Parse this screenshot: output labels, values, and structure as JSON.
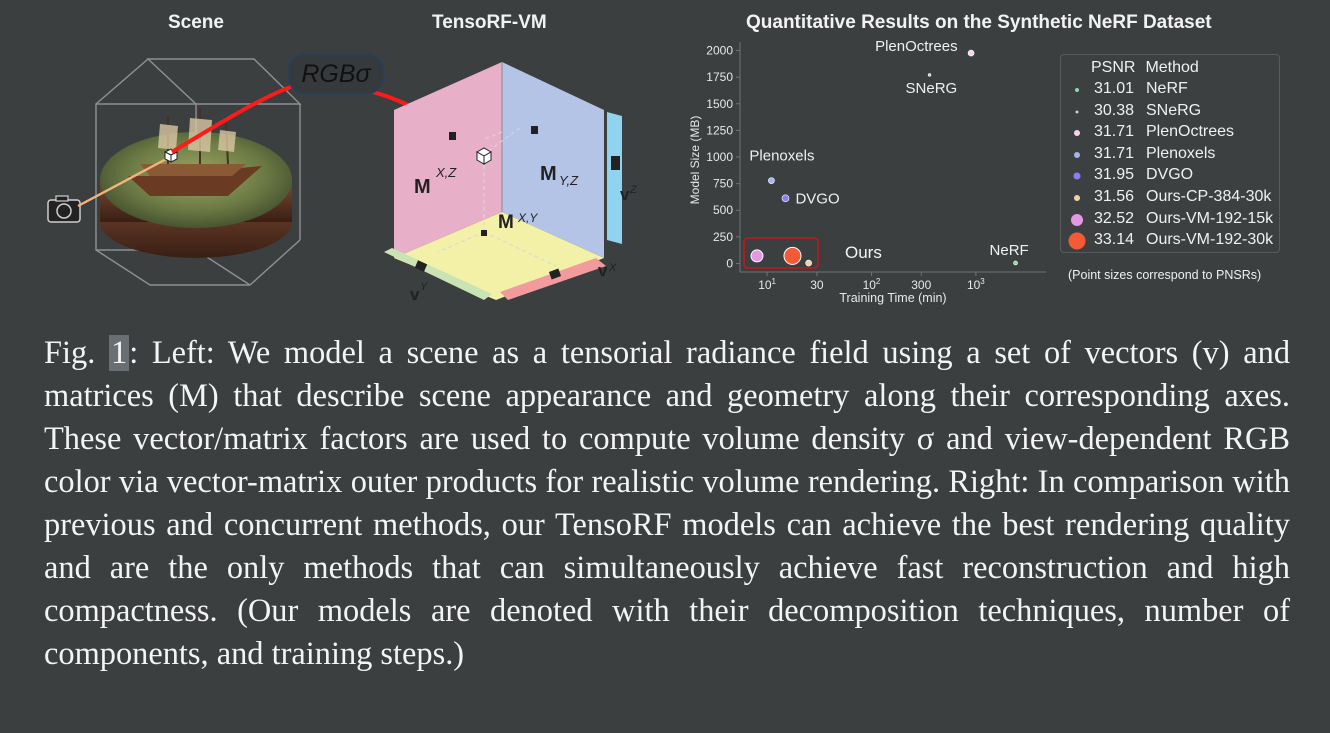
{
  "titles": {
    "scene": "Scene",
    "vm": "TensoRF-VM",
    "chart": "Quantitative Results on the Synthetic NeRF Dataset"
  },
  "diagram": {
    "rgb_sigma": "RGBσ",
    "m_xz": "M",
    "m_xz_sup": "X,Z",
    "m_yz": "M",
    "m_yz_sup": "Y,Z",
    "m_xy": "M",
    "m_xy_sup": "X,Y",
    "v_z": "v",
    "v_z_sup": "Z",
    "v_y": "v",
    "v_y_sup": "Y",
    "v_x": "v",
    "v_x_sup": "X",
    "colors": {
      "plane_xz": "#e8afc9",
      "plane_yz": "#b3c4e6",
      "plane_xy": "#f3f0a8",
      "vec_z": "#8fd3f1",
      "vec_y": "#c9e3b4",
      "vec_x": "#f39a9c",
      "ray": "#ff1a1a"
    }
  },
  "chart_data": {
    "type": "scatter",
    "title": "Quantitative Results on the Synthetic NeRF Dataset",
    "xlabel": "Training Time (min)",
    "ylabel": "Model Size (MB)",
    "x_scale": "log",
    "x_ticks": [
      {
        "value": 10,
        "label": "10",
        "sup": "1"
      },
      {
        "value": 30,
        "label": "30",
        "sup": ""
      },
      {
        "value": 100,
        "label": "10",
        "sup": "2"
      },
      {
        "value": 300,
        "label": "300",
        "sup": ""
      },
      {
        "value": 1000,
        "label": "10",
        "sup": "3"
      }
    ],
    "xlim": [
      5.5,
      4700
    ],
    "y_ticks": [
      0,
      250,
      500,
      750,
      1000,
      1250,
      1500,
      1750,
      2000
    ],
    "ylim": [
      -80,
      2080
    ],
    "legend_header": [
      "PSNR",
      "Method"
    ],
    "points": [
      {
        "method": "NeRF",
        "psnr": "31.01",
        "x": 2400,
        "y": 5,
        "color": "#8fd8a6",
        "r": 2.0,
        "label": "NeRF"
      },
      {
        "method": "SNeRG",
        "psnr": "30.38",
        "x": 360,
        "y": 1771,
        "color": "#e0c2e8",
        "r": 1.4,
        "label": "SNeRG"
      },
      {
        "method": "PlenOctrees",
        "psnr": "31.71",
        "x": 900,
        "y": 1976,
        "color": "#f6d4f0",
        "r": 3.0,
        "label": "PlenOctrees"
      },
      {
        "method": "Plenoxels",
        "psnr": "31.71",
        "x": 11,
        "y": 778,
        "color": "#a4b4ec",
        "r": 3.0,
        "label": "Plenoxels"
      },
      {
        "method": "DVGO",
        "psnr": "31.95",
        "x": 15,
        "y": 612,
        "color": "#8a7ff0",
        "r": 3.5,
        "label": "DVGO"
      },
      {
        "method": "Ours-CP-384-30k",
        "psnr": "31.56",
        "x": 25,
        "y": 4,
        "color": "#f3d3a6",
        "r": 3.0,
        "label": ""
      },
      {
        "method": "Ours-VM-192-15k",
        "psnr": "32.52",
        "x": 8,
        "y": 71,
        "color": "#e497e2",
        "r": 6.0,
        "label": ""
      },
      {
        "method": "Ours-VM-192-30k",
        "psnr": "33.14",
        "x": 17.5,
        "y": 71,
        "color": "#f45a36",
        "r": 8.5,
        "label": ""
      }
    ],
    "ours_label": "Ours",
    "ours_box_color": "#c4161c",
    "footnote": "(Point sizes correspond to PNSRs)"
  },
  "caption": {
    "fig_prefix": "Fig. ",
    "fig_num": "1",
    "text": ": Left: We model a scene as a tensorial radiance field using a set of vectors (v) and matrices (M) that describe scene appearance and geometry along their corresponding axes. These vector/matrix factors are used to compute volume density σ and view-dependent RGB color via vector-matrix outer products for realistic volume rendering. Right: In comparison with previous and concurrent methods, our TensoRF models can achieve the best rendering quality and are the only methods that can simultaneously achieve fast reconstruction and high compactness. (Our models are denoted with their decomposition techniques, number of components, and training steps.)"
  }
}
